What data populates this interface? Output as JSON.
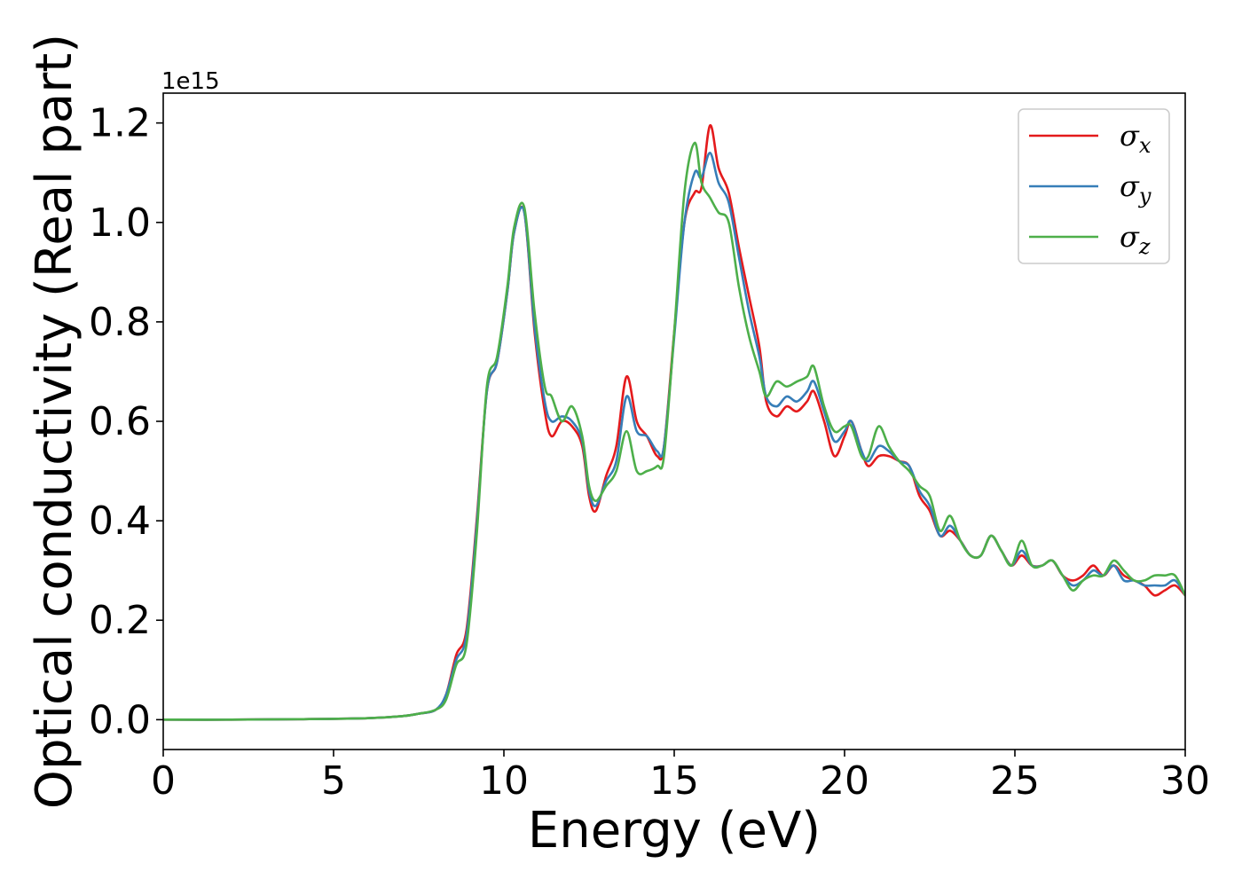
{
  "chart_data": {
    "type": "line",
    "xlabel": "Energy (eV)",
    "ylabel": "Optical conductivity (Real part)",
    "y_offset_label": "1e15",
    "y_scale_multiplier": 1000000000000000.0,
    "xlim": [
      0,
      30
    ],
    "ylim": [
      -0.06,
      1.26
    ],
    "x_ticks": [
      0,
      5,
      10,
      15,
      20,
      25,
      30
    ],
    "x_tick_labels": [
      "0",
      "5",
      "10",
      "15",
      "20",
      "25",
      "30"
    ],
    "y_ticks": [
      0.0,
      0.2,
      0.4,
      0.6,
      0.8,
      1.0,
      1.2
    ],
    "y_tick_labels": [
      "0.0",
      "0.2",
      "0.4",
      "0.6",
      "0.8",
      "1.0",
      "1.2"
    ],
    "grid": false,
    "legend_position": "top-right",
    "series": [
      {
        "name": "σx",
        "legend_symbol": "σ",
        "legend_subscript": "x",
        "color": "#e41a1c",
        "x": [
          0,
          2,
          4,
          6,
          7,
          7.5,
          8,
          8.3,
          8.6,
          8.9,
          9.2,
          9.5,
          9.8,
          10.1,
          10.3,
          10.6,
          10.9,
          11.2,
          11.4,
          11.7,
          12.0,
          12.3,
          12.5,
          12.7,
          13.0,
          13.3,
          13.6,
          13.9,
          14.2,
          14.5,
          14.7,
          15.0,
          15.3,
          15.6,
          15.8,
          16.05,
          16.3,
          16.6,
          16.9,
          17.2,
          17.5,
          17.7,
          18.0,
          18.3,
          18.6,
          18.9,
          19.1,
          19.4,
          19.7,
          20.0,
          20.2,
          20.5,
          20.7,
          21.0,
          21.3,
          21.6,
          21.9,
          22.2,
          22.5,
          22.8,
          23.1,
          23.4,
          23.7,
          24.0,
          24.3,
          24.6,
          24.9,
          25.2,
          25.5,
          25.8,
          26.1,
          26.4,
          26.7,
          27.0,
          27.3,
          27.6,
          27.9,
          28.2,
          28.5,
          28.8,
          29.1,
          29.4,
          29.7,
          30
        ],
        "values": [
          0.0,
          0.0,
          0.001,
          0.003,
          0.007,
          0.012,
          0.02,
          0.05,
          0.13,
          0.18,
          0.4,
          0.66,
          0.72,
          0.86,
          0.98,
          1.02,
          0.78,
          0.62,
          0.57,
          0.6,
          0.59,
          0.55,
          0.45,
          0.42,
          0.49,
          0.55,
          0.69,
          0.6,
          0.57,
          0.53,
          0.55,
          0.78,
          1.0,
          1.06,
          1.07,
          1.195,
          1.11,
          1.06,
          0.95,
          0.85,
          0.75,
          0.64,
          0.61,
          0.63,
          0.62,
          0.64,
          0.66,
          0.6,
          0.53,
          0.57,
          0.6,
          0.54,
          0.51,
          0.53,
          0.53,
          0.52,
          0.51,
          0.45,
          0.42,
          0.37,
          0.38,
          0.36,
          0.33,
          0.33,
          0.37,
          0.34,
          0.31,
          0.33,
          0.31,
          0.31,
          0.32,
          0.29,
          0.28,
          0.29,
          0.31,
          0.29,
          0.31,
          0.29,
          0.28,
          0.27,
          0.25,
          0.26,
          0.27,
          0.25
        ]
      },
      {
        "name": "σy",
        "legend_symbol": "σ",
        "legend_subscript": "y",
        "color": "#377eb8",
        "x": [
          0,
          2,
          4,
          6,
          7,
          7.5,
          8,
          8.3,
          8.6,
          8.9,
          9.2,
          9.5,
          9.8,
          10.1,
          10.3,
          10.6,
          10.9,
          11.2,
          11.4,
          11.7,
          12.0,
          12.3,
          12.5,
          12.7,
          13.0,
          13.3,
          13.6,
          13.9,
          14.2,
          14.5,
          14.7,
          15.0,
          15.3,
          15.6,
          15.8,
          16.05,
          16.3,
          16.6,
          16.9,
          17.2,
          17.5,
          17.7,
          18.0,
          18.3,
          18.6,
          18.9,
          19.1,
          19.4,
          19.7,
          20.0,
          20.2,
          20.5,
          20.7,
          21.0,
          21.3,
          21.6,
          21.9,
          22.2,
          22.5,
          22.8,
          23.1,
          23.4,
          23.7,
          24.0,
          24.3,
          24.6,
          24.9,
          25.2,
          25.5,
          25.8,
          26.1,
          26.4,
          26.7,
          27.0,
          27.3,
          27.6,
          27.9,
          28.2,
          28.5,
          28.8,
          29.1,
          29.4,
          29.7,
          30
        ],
        "values": [
          0.0,
          0.0,
          0.001,
          0.003,
          0.007,
          0.012,
          0.02,
          0.05,
          0.12,
          0.17,
          0.39,
          0.66,
          0.72,
          0.86,
          0.98,
          1.02,
          0.79,
          0.64,
          0.6,
          0.61,
          0.6,
          0.56,
          0.46,
          0.43,
          0.48,
          0.52,
          0.65,
          0.58,
          0.57,
          0.54,
          0.55,
          0.77,
          1.0,
          1.1,
          1.09,
          1.14,
          1.08,
          1.04,
          0.93,
          0.82,
          0.73,
          0.65,
          0.63,
          0.65,
          0.64,
          0.66,
          0.68,
          0.62,
          0.56,
          0.58,
          0.6,
          0.54,
          0.52,
          0.55,
          0.54,
          0.52,
          0.51,
          0.46,
          0.43,
          0.37,
          0.39,
          0.36,
          0.33,
          0.33,
          0.37,
          0.34,
          0.31,
          0.34,
          0.31,
          0.31,
          0.32,
          0.29,
          0.27,
          0.28,
          0.3,
          0.29,
          0.31,
          0.28,
          0.28,
          0.27,
          0.27,
          0.27,
          0.28,
          0.25
        ]
      },
      {
        "name": "σz",
        "legend_symbol": "σ",
        "legend_subscript": "z",
        "color": "#4daf4a",
        "x": [
          0,
          2,
          4,
          6,
          7,
          7.5,
          8,
          8.3,
          8.6,
          8.9,
          9.2,
          9.5,
          9.8,
          10.1,
          10.3,
          10.6,
          10.9,
          11.2,
          11.4,
          11.7,
          12.0,
          12.3,
          12.5,
          12.7,
          13.0,
          13.3,
          13.6,
          13.9,
          14.2,
          14.5,
          14.7,
          15.0,
          15.3,
          15.6,
          15.8,
          16.05,
          16.3,
          16.6,
          16.9,
          17.2,
          17.5,
          17.7,
          18.0,
          18.3,
          18.6,
          18.9,
          19.1,
          19.4,
          19.7,
          20.0,
          20.2,
          20.5,
          20.7,
          21.0,
          21.3,
          21.6,
          21.9,
          22.2,
          22.5,
          22.8,
          23.1,
          23.4,
          23.7,
          24.0,
          24.3,
          24.6,
          24.9,
          25.2,
          25.5,
          25.8,
          26.1,
          26.4,
          26.7,
          27.0,
          27.3,
          27.6,
          27.9,
          28.2,
          28.5,
          28.8,
          29.1,
          29.4,
          29.7,
          30
        ],
        "values": [
          0.0,
          0.0,
          0.001,
          0.003,
          0.007,
          0.012,
          0.02,
          0.04,
          0.11,
          0.15,
          0.37,
          0.67,
          0.73,
          0.87,
          0.99,
          1.03,
          0.82,
          0.67,
          0.65,
          0.6,
          0.63,
          0.57,
          0.47,
          0.44,
          0.47,
          0.5,
          0.58,
          0.5,
          0.5,
          0.51,
          0.53,
          0.78,
          1.06,
          1.16,
          1.08,
          1.05,
          1.02,
          1.0,
          0.87,
          0.77,
          0.7,
          0.65,
          0.68,
          0.67,
          0.68,
          0.69,
          0.71,
          0.63,
          0.58,
          0.59,
          0.59,
          0.53,
          0.53,
          0.59,
          0.55,
          0.52,
          0.5,
          0.47,
          0.45,
          0.38,
          0.41,
          0.36,
          0.33,
          0.33,
          0.37,
          0.34,
          0.31,
          0.36,
          0.31,
          0.31,
          0.32,
          0.29,
          0.26,
          0.28,
          0.29,
          0.29,
          0.32,
          0.3,
          0.28,
          0.28,
          0.29,
          0.29,
          0.29,
          0.25
        ]
      }
    ]
  }
}
